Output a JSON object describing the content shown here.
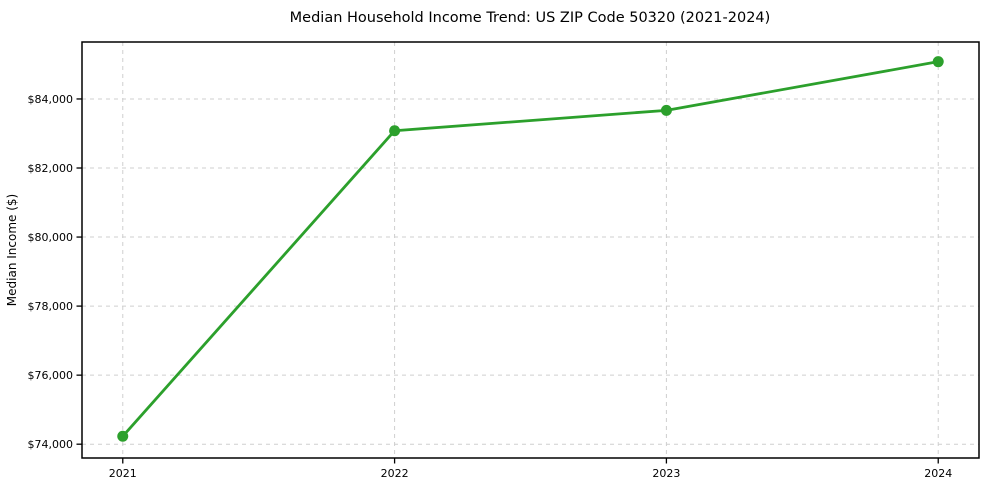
{
  "chart_data": {
    "type": "line",
    "title": "Median Household Income Trend: US ZIP Code 50320 (2021-2024)",
    "xlabel": "",
    "ylabel": "Median Income ($)",
    "x": [
      2021,
      2022,
      2023,
      2024
    ],
    "series": [
      {
        "name": "Median Household Income",
        "values": [
          74230,
          83080,
          83670,
          85080
        ],
        "color": "#2ca02c",
        "marker": "circle",
        "marker_radius": 5.5,
        "line_width": 2.8
      }
    ],
    "xticks": [
      2021,
      2022,
      2023,
      2024
    ],
    "xtick_labels": [
      "2021",
      "2022",
      "2023",
      "2024"
    ],
    "yticks": [
      74000,
      76000,
      78000,
      80000,
      82000,
      84000
    ],
    "ytick_labels": [
      "$74,000",
      "$76,000",
      "$78,000",
      "$80,000",
      "$82,000",
      "$84,000"
    ],
    "xlim": [
      2020.85,
      2024.15
    ],
    "ylim": [
      73600,
      85650
    ],
    "grid": true,
    "grid_style": "dashed",
    "grid_color": "#cfcfcf",
    "frame_color": "#000000",
    "background_color": "#ffffff",
    "legend": null
  }
}
